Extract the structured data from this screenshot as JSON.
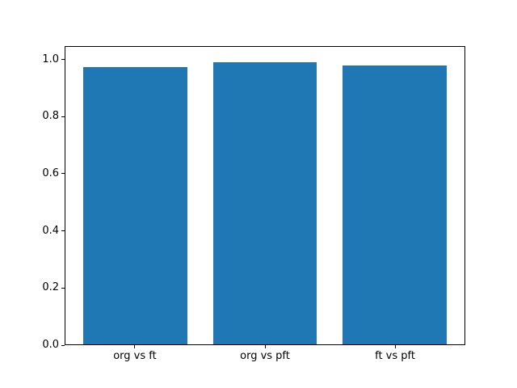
{
  "chart_data": {
    "type": "bar",
    "title": "",
    "categories": [
      "org vs ft",
      "org vs pft",
      "ft vs pft"
    ],
    "values": [
      0.977,
      0.994,
      0.983
    ],
    "series_name": "",
    "xlabel": "",
    "ylabel": "",
    "ylim": [
      0,
      1.047
    ],
    "ytick_labels": [
      "0.0",
      "0.2",
      "0.4",
      "0.6",
      "0.8",
      "1.0"
    ],
    "ytick_values": [
      0.0,
      0.2,
      0.4,
      0.6,
      0.8,
      1.0
    ],
    "xlim": [
      -0.54,
      2.54
    ],
    "bar_centers": [
      0,
      1,
      2
    ],
    "bar_width": 0.8,
    "bar_color": "#1f77b4",
    "grid": false,
    "legend_position": "none"
  },
  "figure": {
    "background_color": "#ffffff",
    "spine_color": "#000000",
    "text_color": "#000000"
  }
}
